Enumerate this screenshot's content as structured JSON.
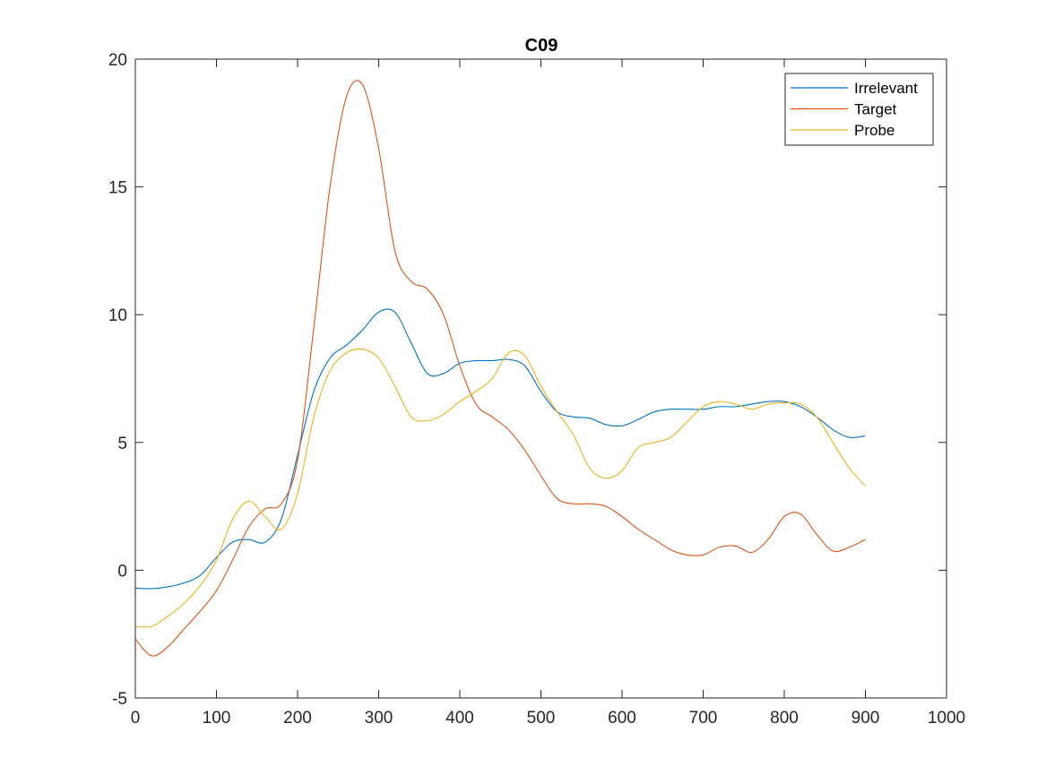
{
  "chart_data": {
    "type": "line",
    "title": "C09",
    "xlabel": "",
    "ylabel": "",
    "xlim": [
      0,
      1000
    ],
    "ylim": [
      -5,
      20
    ],
    "xticks": [
      0,
      100,
      200,
      300,
      400,
      500,
      600,
      700,
      800,
      900,
      1000
    ],
    "yticks": [
      -5,
      0,
      5,
      10,
      15,
      20
    ],
    "xtick_labels": [
      "0",
      "100",
      "200",
      "300",
      "400",
      "500",
      "600",
      "700",
      "800",
      "900",
      "1000"
    ],
    "ytick_labels": [
      "-5",
      "0",
      "5",
      "10",
      "15",
      "20"
    ],
    "grid": false,
    "legend_position": "top-right",
    "x": [
      0,
      20,
      40,
      60,
      80,
      100,
      120,
      140,
      160,
      180,
      200,
      220,
      240,
      260,
      280,
      300,
      320,
      340,
      360,
      380,
      400,
      420,
      440,
      460,
      480,
      500,
      520,
      540,
      560,
      580,
      600,
      620,
      640,
      660,
      680,
      700,
      720,
      740,
      760,
      780,
      800,
      820,
      840,
      860,
      880,
      900
    ],
    "series": [
      {
        "name": "Irrelevant",
        "color": "#0072BD",
        "values": [
          -0.7,
          -0.72,
          -0.65,
          -0.5,
          -0.2,
          0.5,
          1.1,
          1.2,
          1.1,
          2.0,
          4.5,
          7.0,
          8.3,
          8.8,
          9.4,
          10.1,
          10.1,
          8.9,
          7.7,
          7.7,
          8.1,
          8.2,
          8.2,
          8.25,
          8.0,
          7.0,
          6.2,
          6.0,
          5.95,
          5.7,
          5.65,
          5.9,
          6.2,
          6.3,
          6.3,
          6.3,
          6.4,
          6.4,
          6.5,
          6.6,
          6.6,
          6.4,
          6.0,
          5.5,
          5.2,
          5.25
        ]
      },
      {
        "name": "Target",
        "color": "#D95319",
        "values": [
          -2.7,
          -3.35,
          -3.0,
          -2.3,
          -1.6,
          -0.8,
          0.4,
          1.7,
          2.4,
          2.6,
          4.3,
          9.5,
          15.0,
          18.5,
          19.0,
          16.5,
          12.5,
          11.3,
          11.0,
          10.0,
          8.0,
          6.5,
          6.0,
          5.5,
          4.7,
          3.7,
          2.8,
          2.6,
          2.6,
          2.5,
          2.1,
          1.6,
          1.2,
          0.8,
          0.6,
          0.6,
          0.9,
          0.95,
          0.7,
          1.2,
          2.1,
          2.2,
          1.4,
          0.75,
          0.9,
          1.2
        ]
      },
      {
        "name": "Probe",
        "color": "#EDB120",
        "values": [
          -2.2,
          -2.2,
          -1.8,
          -1.3,
          -0.6,
          0.4,
          2.0,
          2.7,
          2.1,
          1.6,
          3.0,
          6.0,
          7.8,
          8.5,
          8.65,
          8.3,
          7.2,
          6.0,
          5.85,
          6.1,
          6.6,
          7.0,
          7.5,
          8.5,
          8.4,
          7.2,
          6.2,
          5.3,
          4.0,
          3.6,
          3.9,
          4.8,
          5.0,
          5.2,
          5.8,
          6.4,
          6.6,
          6.5,
          6.3,
          6.5,
          6.55,
          6.5,
          6.0,
          5.0,
          4.0,
          3.3
        ]
      }
    ]
  }
}
